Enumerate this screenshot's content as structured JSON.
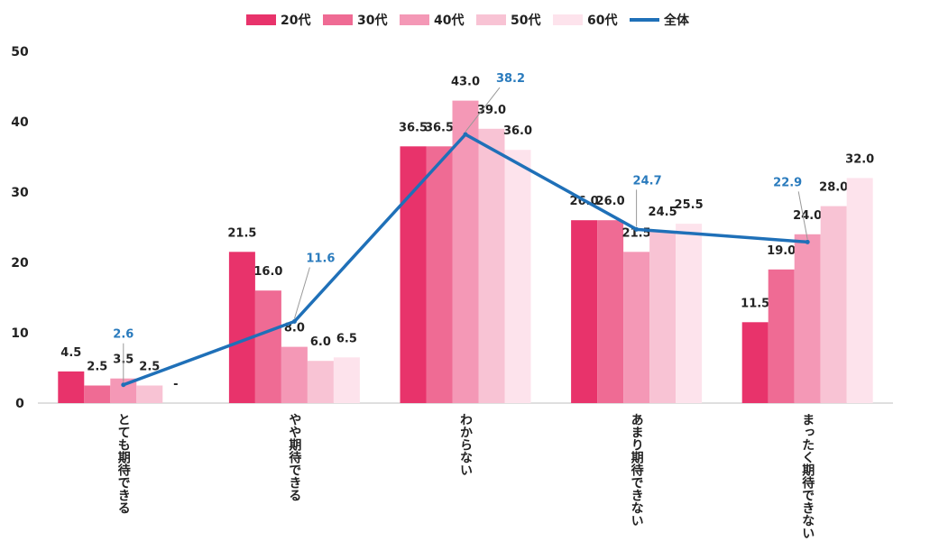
{
  "chart_data": {
    "type": "bar",
    "title": "",
    "xlabel": "",
    "ylabel": "",
    "ylim": [
      0,
      50
    ],
    "yticks": [
      0,
      10,
      20,
      30,
      40,
      50
    ],
    "categories": [
      "とても期待できる",
      "やや期待できる",
      "わからない",
      "あまり期待できない",
      "まったく期待できない"
    ],
    "series": [
      {
        "name": "20代",
        "color": "#e8336b",
        "values": [
          4.5,
          21.5,
          36.5,
          26.0,
          11.5
        ]
      },
      {
        "name": "30代",
        "color": "#ef6b94",
        "values": [
          2.5,
          16.0,
          36.5,
          26.0,
          19.0
        ]
      },
      {
        "name": "40代",
        "color": "#f498b6",
        "values": [
          3.5,
          8.0,
          43.0,
          21.5,
          24.0
        ]
      },
      {
        "name": "50代",
        "color": "#f8c3d4",
        "values": [
          2.5,
          6.0,
          39.0,
          24.5,
          28.0
        ]
      },
      {
        "name": "60代",
        "color": "#fde3ec",
        "values": [
          null,
          6.5,
          36.0,
          25.5,
          32.0
        ]
      }
    ],
    "line_series": {
      "name": "全体",
      "color": "#1f70b8",
      "values": [
        2.6,
        11.6,
        38.2,
        24.7,
        22.9
      ]
    },
    "missing_label": "-",
    "grid": false,
    "legend_position": "top-center"
  }
}
